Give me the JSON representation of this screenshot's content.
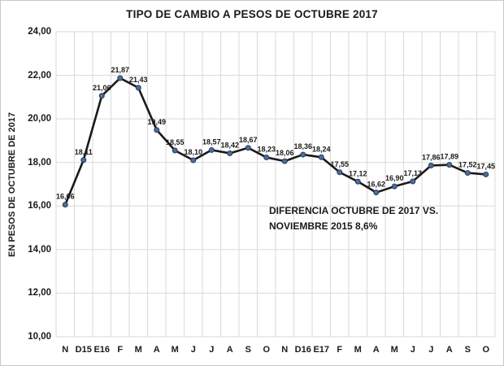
{
  "chart_data": {
    "type": "line",
    "title": "TIPO DE CAMBIO A PESOS DE OCTUBRE 2017",
    "ylabel": "EN PESOS DE OCTUBRE DE 2017",
    "xlabel": "",
    "categories": [
      "N",
      "D15",
      "E16",
      "F",
      "M",
      "A",
      "M",
      "J",
      "J",
      "A",
      "S",
      "O",
      "N",
      "D16",
      "E17",
      "F",
      "M",
      "A",
      "M",
      "J",
      "J",
      "A",
      "S",
      "O"
    ],
    "values": [
      16.06,
      18.11,
      21.06,
      21.87,
      21.43,
      19.49,
      18.55,
      18.1,
      18.57,
      18.42,
      18.67,
      18.23,
      18.06,
      18.36,
      18.24,
      17.55,
      17.12,
      16.62,
      16.9,
      17.13,
      17.86,
      17.89,
      17.52,
      17.45
    ],
    "data_labels": [
      "16,06",
      "18,11",
      "21,06",
      "21,87",
      "21,43",
      "19,49",
      "18,55",
      "18,10",
      "18,57",
      "18,42",
      "18,67",
      "18,23",
      "18,06",
      "18,36",
      "18,24",
      "17,55",
      "17,12",
      "16,62",
      "16,90",
      "17,13",
      "17,86",
      "17,89",
      "17,52",
      "17,45"
    ],
    "ytick_labels": [
      "24,00",
      "22,00",
      "20,00",
      "18,00",
      "16,00",
      "14,00",
      "12,00",
      "10,00"
    ],
    "ylim": [
      10,
      24
    ],
    "ytick_step": 2,
    "grid": true,
    "legend": "none",
    "annotation": {
      "line1": "DIFERENCIA OCTUBRE DE 2017 VS.",
      "line2": "NOVIEMBRE 2015 8,6%"
    },
    "colors": {
      "line": "#1a1a1a",
      "marker_fill": "#4f6d96",
      "marker_edge": "#243c5c",
      "gridline": "#d9d9d9",
      "text": "#1a1a1a",
      "frame_border": "#c9c9c9"
    }
  }
}
